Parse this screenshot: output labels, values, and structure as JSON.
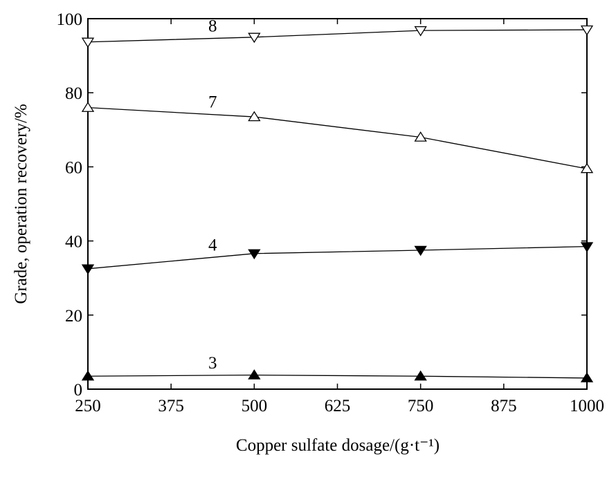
{
  "chart_data": {
    "type": "line",
    "x_label": "Copper sulfate dosage/(g·t⁻¹)",
    "y_label": "Grade, operation recovery/%",
    "x": [
      250,
      500,
      750,
      1000
    ],
    "xlim": [
      250,
      1000
    ],
    "xticks": [
      250,
      375,
      500,
      625,
      750,
      875,
      1000
    ],
    "ylim": [
      0,
      100
    ],
    "yticks": [
      0,
      20,
      40,
      60,
      80,
      100
    ],
    "series": [
      {
        "name": "8",
        "color": "#000000",
        "marker": "down-open",
        "values": [
          93.7,
          95,
          96.8,
          97
        ]
      },
      {
        "name": "7",
        "color": "#000000",
        "marker": "up-open",
        "values": [
          76,
          73.5,
          68,
          59.5
        ]
      },
      {
        "name": "4",
        "color": "#000000",
        "marker": "down-filled",
        "values": [
          32.5,
          36.6,
          37.5,
          38.5
        ]
      },
      {
        "name": "3",
        "color": "#000000",
        "marker": "up-filled",
        "values": [
          3.5,
          3.8,
          3.5,
          3.0
        ]
      }
    ]
  }
}
